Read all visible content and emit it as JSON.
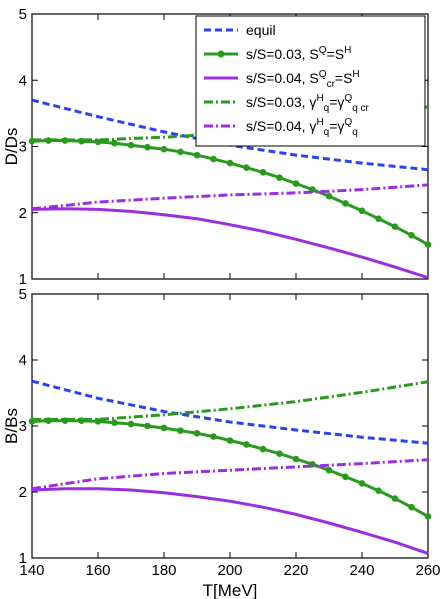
{
  "colors": {
    "equil": "#2a44e6",
    "green": "#2a9a1e",
    "purple": "#9a2fe0"
  },
  "legend": [
    {
      "label": "equil",
      "sup": "",
      "style": "dashed",
      "color": "#2a44e6"
    },
    {
      "label": "s/S=0.03, S",
      "sup": "Q",
      "label2": "=S",
      "sup2": "H",
      "style": "solid-marker",
      "color": "#2a9a1e"
    },
    {
      "label": "s/S=0.04, S",
      "sup": "Q",
      "sub": "cr",
      "label2": "=S",
      "sup2": "H",
      "style": "solid",
      "color": "#9a2fe0"
    },
    {
      "label": "s/S=0.03, γ",
      "sup": "H",
      "sub": "q",
      "label2": "=γ",
      "sup2": "Q",
      "sub2": "q cr",
      "style": "dashdot",
      "color": "#2a9a1e"
    },
    {
      "label": "s/S=0.04, γ",
      "sup": "H",
      "sub": "q",
      "label2": "=γ",
      "sup2": "Q",
      "sub2": "q",
      "style": "dashdot",
      "color": "#9a2fe0"
    }
  ],
  "chart_data": [
    {
      "type": "line",
      "ylabel": "D/Ds",
      "xlabel": "",
      "xlim": [
        140,
        260
      ],
      "ylim": [
        1,
        5
      ],
      "yticks": [
        "1",
        "2",
        "3",
        "4",
        "5"
      ],
      "xticks": [
        "140",
        "160",
        "180",
        "200",
        "220",
        "240",
        "260"
      ],
      "series": [
        {
          "name": "equil",
          "x": [
            140,
            160,
            180,
            200,
            220,
            240,
            260
          ],
          "y": [
            3.7,
            3.45,
            3.22,
            3.02,
            2.87,
            2.75,
            2.65
          ]
        },
        {
          "name": "s/S=0.03, S^Q=S^H",
          "x": [
            140,
            145,
            150,
            155,
            160,
            165,
            170,
            175,
            180,
            185,
            190,
            195,
            200,
            205,
            210,
            215,
            220,
            225,
            230,
            235,
            240,
            245,
            250,
            255,
            260
          ],
          "y": [
            3.08,
            3.09,
            3.09,
            3.08,
            3.07,
            3.05,
            3.02,
            2.99,
            2.96,
            2.92,
            2.87,
            2.81,
            2.75,
            2.68,
            2.61,
            2.53,
            2.44,
            2.35,
            2.25,
            2.14,
            2.03,
            1.91,
            1.79,
            1.66,
            1.52
          ]
        },
        {
          "name": "s/S=0.04, S^Q_cr=S^H",
          "x": [
            140,
            150,
            160,
            170,
            180,
            190,
            200,
            210,
            220,
            230,
            240,
            250,
            260
          ],
          "y": [
            2.05,
            2.06,
            2.05,
            2.02,
            1.97,
            1.91,
            1.82,
            1.72,
            1.6,
            1.47,
            1.33,
            1.18,
            1.02
          ]
        },
        {
          "name": "s/S=0.03, γ^H_q=γ^Q_q cr",
          "x": [
            140,
            160,
            180,
            200,
            220,
            240,
            260
          ],
          "y": [
            3.1,
            3.1,
            3.14,
            3.2,
            3.3,
            3.45,
            3.6
          ]
        },
        {
          "name": "s/S=0.04, γ^H_q=γ^Q_q",
          "x": [
            140,
            160,
            180,
            200,
            220,
            240,
            260
          ],
          "y": [
            2.06,
            2.16,
            2.22,
            2.27,
            2.3,
            2.35,
            2.42
          ]
        }
      ]
    },
    {
      "type": "line",
      "ylabel": "B/Bs",
      "xlabel": "T[MeV]",
      "xlim": [
        140,
        260
      ],
      "ylim": [
        1,
        5
      ],
      "yticks": [
        "1",
        "2",
        "3",
        "4",
        "5"
      ],
      "xticks": [
        "140",
        "160",
        "180",
        "200",
        "220",
        "240",
        "260"
      ],
      "series": [
        {
          "name": "equil",
          "x": [
            140,
            160,
            180,
            200,
            220,
            240,
            260
          ],
          "y": [
            3.68,
            3.42,
            3.22,
            3.06,
            2.94,
            2.83,
            2.74
          ]
        },
        {
          "name": "s/S=0.03, S^Q=S^H",
          "x": [
            140,
            145,
            150,
            155,
            160,
            165,
            170,
            175,
            180,
            185,
            190,
            195,
            200,
            205,
            210,
            215,
            220,
            225,
            230,
            235,
            240,
            245,
            250,
            255,
            260
          ],
          "y": [
            3.07,
            3.08,
            3.08,
            3.08,
            3.07,
            3.05,
            3.03,
            3.0,
            2.97,
            2.93,
            2.89,
            2.84,
            2.78,
            2.72,
            2.65,
            2.58,
            2.5,
            2.42,
            2.33,
            2.23,
            2.13,
            2.02,
            1.9,
            1.77,
            1.63
          ]
        },
        {
          "name": "s/S=0.04, S^Q_cr=S^H",
          "x": [
            140,
            150,
            160,
            170,
            180,
            190,
            200,
            210,
            220,
            230,
            240,
            250,
            260
          ],
          "y": [
            2.03,
            2.05,
            2.05,
            2.03,
            1.99,
            1.93,
            1.86,
            1.77,
            1.66,
            1.53,
            1.39,
            1.24,
            1.07
          ]
        },
        {
          "name": "s/S=0.03, γ^H_q=γ^Q_q cr",
          "x": [
            140,
            160,
            180,
            200,
            220,
            240,
            260
          ],
          "y": [
            3.1,
            3.1,
            3.17,
            3.26,
            3.37,
            3.51,
            3.67
          ]
        },
        {
          "name": "s/S=0.04, γ^H_q=γ^Q_q",
          "x": [
            140,
            160,
            180,
            200,
            220,
            240,
            260
          ],
          "y": [
            2.05,
            2.2,
            2.28,
            2.33,
            2.38,
            2.43,
            2.49
          ]
        }
      ]
    }
  ]
}
